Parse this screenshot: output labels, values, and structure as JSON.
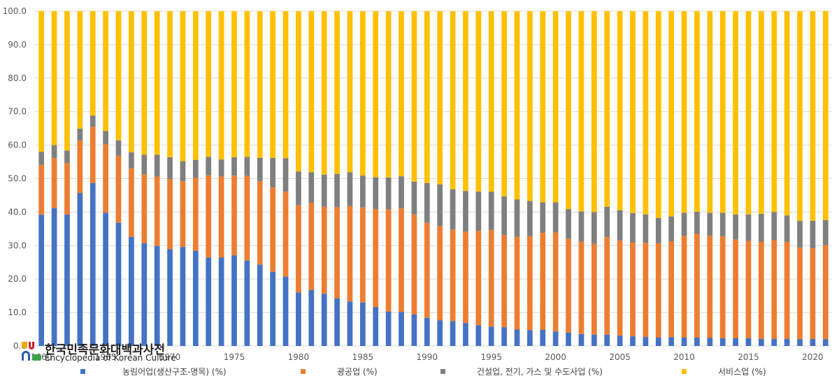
{
  "colors": {
    "agriculture": "#4472C4",
    "mining": "#ED7D31",
    "construction": "#7F7F7F",
    "services": "#FFC000",
    "grid": "#D9D9D9"
  },
  "logo": {
    "title": "한국민족문화대백과사전",
    "subtitle": "Encyclopedia of Korean Culture"
  },
  "chart_data": {
    "type": "bar",
    "stacked": true,
    "x": [
      1960,
      1961,
      1962,
      1963,
      1964,
      1965,
      1966,
      1967,
      1968,
      1969,
      1970,
      1971,
      1972,
      1973,
      1974,
      1975,
      1976,
      1977,
      1978,
      1979,
      1980,
      1981,
      1982,
      1983,
      1984,
      1985,
      1986,
      1987,
      1988,
      1989,
      1990,
      1991,
      1992,
      1993,
      1994,
      1995,
      1996,
      1997,
      1998,
      1999,
      2000,
      2001,
      2002,
      2003,
      2004,
      2005,
      2006,
      2007,
      2008,
      2009,
      2010,
      2011,
      2012,
      2013,
      2014,
      2015,
      2016,
      2017,
      2018,
      2019,
      2020,
      2021
    ],
    "x_tick_labels": [
      "1960",
      "1965",
      "1970",
      "1975",
      "1980",
      "1985",
      "1990",
      "1995",
      "2000",
      "2005",
      "2010",
      "2015",
      "2020"
    ],
    "ylim": [
      0,
      100
    ],
    "y_ticks": [
      "0.0",
      "10.0",
      "20.0",
      "30.0",
      "40.0",
      "50.0",
      "60.0",
      "70.0",
      "80.0",
      "90.0",
      "100.0"
    ],
    "grid": true,
    "legend_position": "bottom",
    "series": [
      {
        "name": "농림어업(생산구조-명목) (%)",
        "color_key": "agriculture",
        "values": [
          39.2,
          41.2,
          39.3,
          45.7,
          48.7,
          39.8,
          36.8,
          32.6,
          30.7,
          29.9,
          28.9,
          29.6,
          28.4,
          26.4,
          26.4,
          27.1,
          25.5,
          24.3,
          22.2,
          20.7,
          16.0,
          16.7,
          15.6,
          14.2,
          13.3,
          13.0,
          11.6,
          10.3,
          10.2,
          9.4,
          8.4,
          7.7,
          7.4,
          6.8,
          6.2,
          5.8,
          5.6,
          4.9,
          4.7,
          4.8,
          4.3,
          4.0,
          3.6,
          3.4,
          3.4,
          3.1,
          2.9,
          2.7,
          2.5,
          2.6,
          2.5,
          2.5,
          2.4,
          2.3,
          2.3,
          2.3,
          2.1,
          2.1,
          2.1,
          2.0,
          2.1,
          2.0
        ]
      },
      {
        "name": "광공업 (%)",
        "color_key": "mining",
        "values": [
          14.9,
          14.9,
          15.3,
          15.7,
          16.8,
          20.4,
          20.0,
          20.4,
          20.6,
          20.7,
          21.0,
          19.6,
          21.8,
          24.6,
          24.2,
          23.8,
          25.3,
          24.9,
          25.2,
          25.4,
          26.0,
          26.0,
          26.0,
          27.2,
          28.5,
          28.4,
          29.3,
          30.5,
          30.9,
          29.9,
          28.4,
          28.1,
          27.3,
          27.3,
          28.2,
          28.8,
          27.5,
          27.7,
          28.1,
          29.0,
          29.6,
          28.0,
          27.6,
          27.0,
          29.1,
          28.4,
          28.0,
          28.1,
          28.2,
          28.6,
          30.4,
          31.0,
          30.5,
          30.5,
          29.5,
          29.1,
          29.0,
          29.5,
          29.0,
          27.4,
          27.1,
          28.1
        ]
      },
      {
        "name": "건설업, 전기, 가스 및 수도사업 (%)",
        "color_key": "construction",
        "values": [
          3.9,
          3.9,
          3.8,
          3.5,
          3.3,
          4.0,
          4.6,
          4.9,
          5.8,
          6.5,
          6.5,
          6.0,
          5.4,
          5.5,
          5.1,
          5.5,
          5.7,
          7.0,
          8.8,
          10.0,
          10.1,
          9.2,
          9.6,
          10.0,
          10.1,
          9.5,
          9.5,
          9.5,
          9.6,
          9.8,
          11.9,
          12.5,
          12.1,
          12.2,
          11.7,
          11.5,
          11.6,
          11.2,
          10.5,
          9.1,
          9.0,
          8.9,
          9.0,
          9.6,
          9.1,
          9.0,
          8.8,
          8.5,
          7.5,
          7.5,
          6.9,
          6.6,
          6.9,
          7.0,
          7.5,
          7.9,
          8.4,
          8.4,
          7.9,
          8.0,
          8.2,
          7.5
        ]
      },
      {
        "name": "서비스업 (%)",
        "color_key": "services",
        "values": [
          42.0,
          40.0,
          41.6,
          35.1,
          31.2,
          35.8,
          38.6,
          42.1,
          42.9,
          42.9,
          43.6,
          44.8,
          44.4,
          43.5,
          44.3,
          43.6,
          43.5,
          43.8,
          43.8,
          43.9,
          47.9,
          48.1,
          48.8,
          48.6,
          48.1,
          49.1,
          49.6,
          49.7,
          49.3,
          50.9,
          51.3,
          51.7,
          53.2,
          53.7,
          53.9,
          53.9,
          55.3,
          56.2,
          56.7,
          57.1,
          57.1,
          59.1,
          59.8,
          60.0,
          58.4,
          59.5,
          60.3,
          60.7,
          61.8,
          61.3,
          60.2,
          59.9,
          60.2,
          60.2,
          60.7,
          60.7,
          60.5,
          60.0,
          61.0,
          62.6,
          62.6,
          62.4
        ]
      }
    ]
  }
}
